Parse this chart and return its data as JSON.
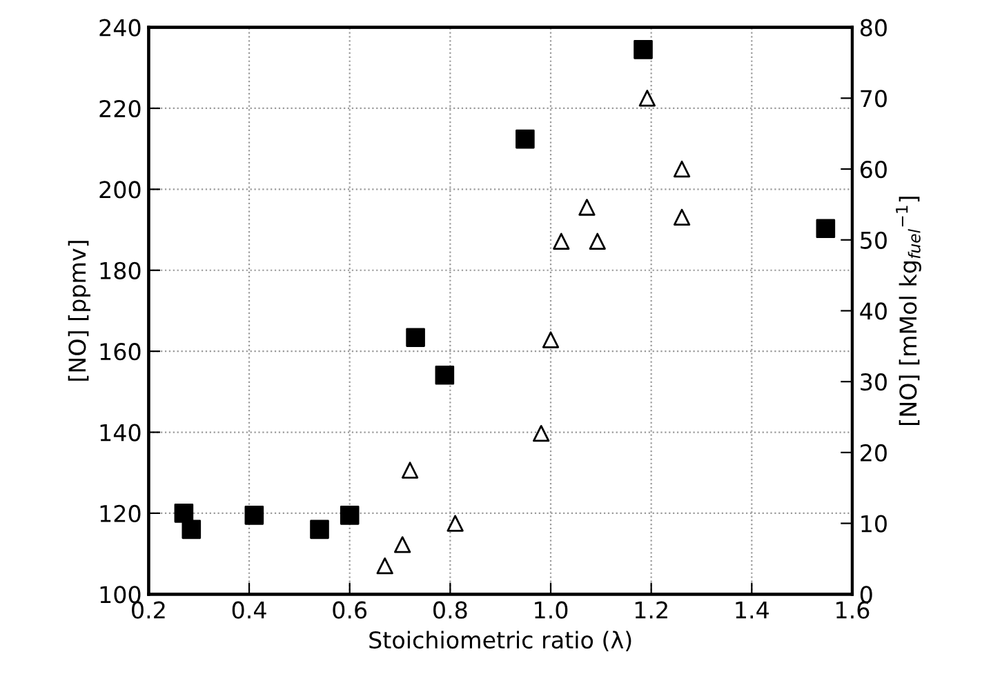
{
  "chart_data": {
    "type": "scatter",
    "xlabel": "Stoichiometric ratio (λ)",
    "ylabel": "[NO] [ppmv]",
    "y2label": "[NO] [mMol kg$_{fuel}$$^{−1}$]",
    "xlim": [
      0.2,
      1.6
    ],
    "xticks": [
      0.2,
      0.4,
      0.6,
      0.8,
      {
        "value": 1,
        "label": "1.0"
      },
      1.2,
      1.4,
      1.6
    ],
    "ylim": [
      100,
      240
    ],
    "yticks": [
      100,
      120,
      140,
      160,
      180,
      200,
      220,
      240
    ],
    "y2lim": [
      0,
      80
    ],
    "y2ticks": [
      0,
      10,
      20,
      30,
      40,
      50,
      60,
      70,
      80
    ],
    "grid": true,
    "line_style": "dotted",
    "series": [
      {
        "color": "#000000",
        "marker": "square",
        "x": [
          0.27,
          0.285,
          0.41,
          0.54,
          0.6,
          0.731,
          0.789,
          0.949,
          1.184,
          1.547
        ],
        "values": [
          120,
          116,
          119.5,
          116,
          119.5,
          163.4,
          154.1,
          212.4,
          234.5,
          190.3
        ]
      },
      {
        "color": "#000000",
        "marker": "triangle",
        "axis": "y2",
        "x": [
          0.67,
          0.705,
          0.72,
          0.81,
          0.981,
          1.0,
          1.021,
          1.072,
          1.093,
          1.192,
          1.261,
          1.261
        ],
        "values": [
          4,
          7,
          17.5,
          10,
          22.7,
          35.9,
          49.8,
          54.6,
          49.8,
          70,
          60,
          53.2
        ]
      }
    ]
  }
}
